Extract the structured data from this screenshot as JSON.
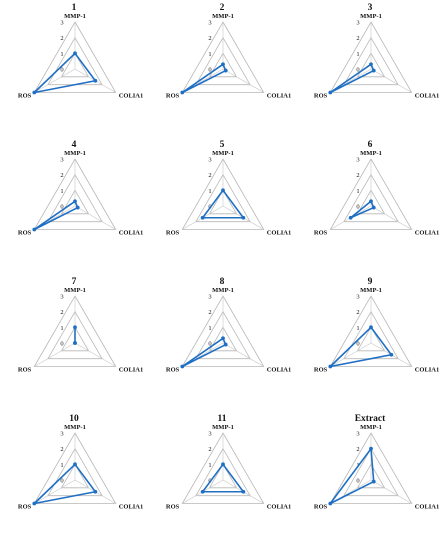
{
  "chart_data": [
    {
      "type": "radar",
      "title": "1",
      "axes": [
        "MMP-1",
        "COLIA1",
        "ROS"
      ],
      "ticks": [
        "0",
        "1",
        "2",
        "3"
      ],
      "rmax": 3,
      "values": [
        1.0,
        1.5,
        3.0
      ],
      "color": "#1f6fc5"
    },
    {
      "type": "radar",
      "title": "2",
      "axes": [
        "MMP-1",
        "COLIA1",
        "ROS"
      ],
      "ticks": [
        "0",
        "1",
        "2",
        "3"
      ],
      "rmax": 3,
      "values": [
        0.3,
        0.2,
        3.0
      ],
      "color": "#1f6fc5"
    },
    {
      "type": "radar",
      "title": "3",
      "axes": [
        "MMP-1",
        "COLIA1",
        "ROS"
      ],
      "ticks": [
        "0",
        "1",
        "2",
        "3"
      ],
      "rmax": 3,
      "values": [
        0.3,
        0.2,
        3.0
      ],
      "color": "#1f6fc5"
    },
    {
      "type": "radar",
      "title": "4",
      "axes": [
        "MMP-1",
        "COLIA1",
        "ROS"
      ],
      "ticks": [
        "0",
        "1",
        "2",
        "3"
      ],
      "rmax": 3,
      "values": [
        0.3,
        0.2,
        3.0
      ],
      "color": "#1f6fc5"
    },
    {
      "type": "radar",
      "title": "5",
      "axes": [
        "MMP-1",
        "COLIA1",
        "ROS"
      ],
      "ticks": [
        "0",
        "1",
        "2",
        "3"
      ],
      "rmax": 3,
      "values": [
        1.0,
        1.5,
        1.5
      ],
      "color": "#1f6fc5"
    },
    {
      "type": "radar",
      "title": "6",
      "axes": [
        "MMP-1",
        "COLIA1",
        "ROS"
      ],
      "ticks": [
        "0",
        "1",
        "2",
        "3"
      ],
      "rmax": 3,
      "values": [
        0.3,
        0.2,
        1.5
      ],
      "color": "#1f6fc5"
    },
    {
      "type": "radar",
      "title": "7",
      "axes": [
        "MMP-1",
        "COLIA1",
        "ROS"
      ],
      "ticks": [
        "0",
        "1",
        "2",
        "3"
      ],
      "rmax": 3,
      "values": [
        1.0,
        0.0,
        0.0
      ],
      "color": "#1f6fc5"
    },
    {
      "type": "radar",
      "title": "8",
      "axes": [
        "MMP-1",
        "COLIA1",
        "ROS"
      ],
      "ticks": [
        "0",
        "1",
        "2",
        "3"
      ],
      "rmax": 3,
      "values": [
        0.3,
        0.2,
        3.0
      ],
      "color": "#1f6fc5"
    },
    {
      "type": "radar",
      "title": "9",
      "axes": [
        "MMP-1",
        "COLIA1",
        "ROS"
      ],
      "ticks": [
        "0",
        "1",
        "2",
        "3"
      ],
      "rmax": 3,
      "values": [
        1.0,
        1.5,
        3.0
      ],
      "color": "#1f6fc5"
    },
    {
      "type": "radar",
      "title": "10",
      "axes": [
        "MMP-1",
        "COLIA1",
        "ROS"
      ],
      "ticks": [
        "0",
        "1",
        "2",
        "3"
      ],
      "rmax": 3,
      "values": [
        1.0,
        1.5,
        3.0
      ],
      "color": "#1f6fc5"
    },
    {
      "type": "radar",
      "title": "11",
      "axes": [
        "MMP-1",
        "COLIA1",
        "ROS"
      ],
      "ticks": [
        "0",
        "1",
        "2",
        "3"
      ],
      "rmax": 3,
      "values": [
        1.0,
        1.5,
        1.5
      ],
      "color": "#1f6fc5"
    },
    {
      "type": "radar",
      "title": "Extract",
      "axes": [
        "MMP-1",
        "COLIA1",
        "ROS"
      ],
      "ticks": [
        "0",
        "1",
        "2",
        "3"
      ],
      "rmax": 3,
      "values": [
        2.0,
        0.2,
        3.0
      ],
      "color": "#1f6fc5"
    }
  ]
}
